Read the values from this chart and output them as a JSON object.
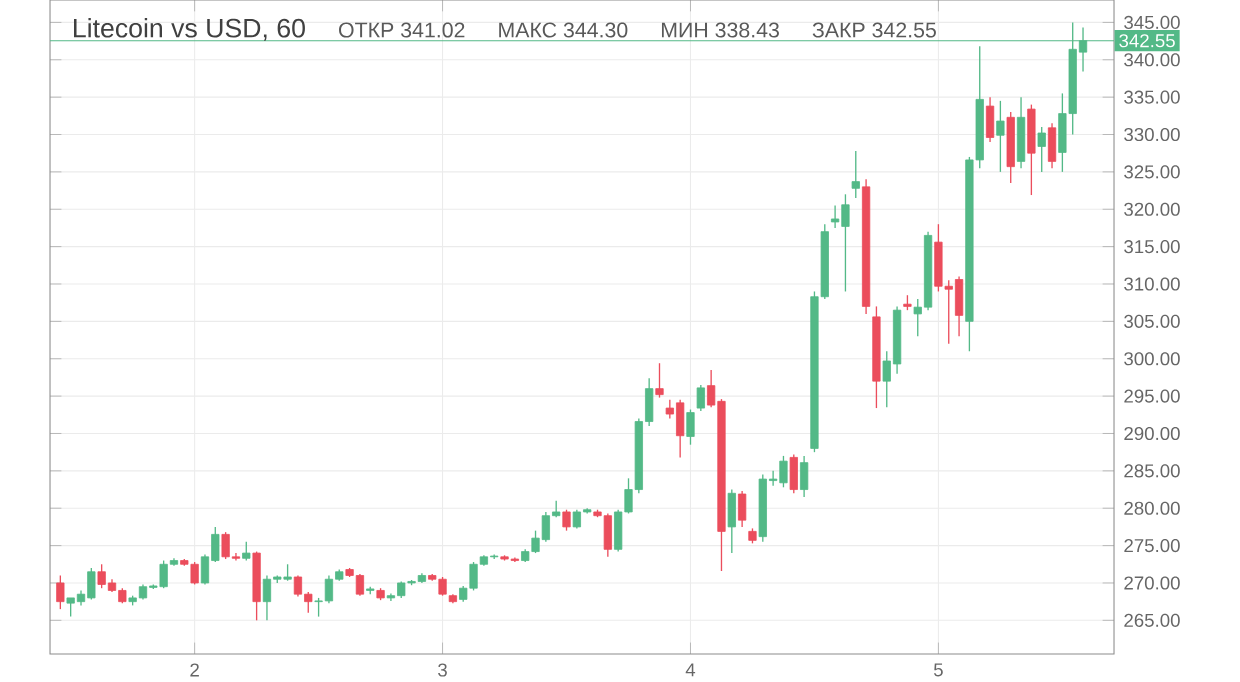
{
  "chart_data": {
    "type": "candlestick",
    "title": "Litecoin vs USD, 60",
    "annotations": [
      "ОТКР 341.02",
      "МАКС 344.30",
      "МИН 338.43",
      "ЗАКР 342.55"
    ],
    "x": [
      1.4583,
      1.5,
      1.5417,
      1.5833,
      1.625,
      1.6667,
      1.7083,
      1.75,
      1.7917,
      1.8333,
      1.875,
      1.9167,
      1.9583,
      2,
      2.0417,
      2.0833,
      2.125,
      2.1667,
      2.2083,
      2.25,
      2.2917,
      2.3333,
      2.375,
      2.4167,
      2.4583,
      2.5,
      2.5417,
      2.5833,
      2.625,
      2.6667,
      2.7083,
      2.75,
      2.7917,
      2.8333,
      2.875,
      2.9167,
      2.9583,
      3,
      3.0417,
      3.0833,
      3.125,
      3.1667,
      3.2083,
      3.25,
      3.2917,
      3.3333,
      3.375,
      3.4167,
      3.4583,
      3.5,
      3.5417,
      3.5833,
      3.625,
      3.6667,
      3.7083,
      3.75,
      3.7917,
      3.8333,
      3.875,
      3.9167,
      3.9583,
      4,
      4.0417,
      4.0833,
      4.125,
      4.1667,
      4.2083,
      4.25,
      4.2917,
      4.3333,
      4.375,
      4.4167,
      4.4583,
      4.5,
      4.5417,
      4.5833,
      4.625,
      4.6667,
      4.7083,
      4.75,
      4.7917,
      4.8333,
      4.875,
      4.9167,
      4.9583,
      5,
      5.0417,
      5.0833,
      5.125,
      5.1667,
      5.2083,
      5.25,
      5.2917,
      5.3333,
      5.375,
      5.4167,
      5.4583,
      5.5,
      5.5417,
      5.5833
    ],
    "ohlc": [
      [
        270,
        271,
        266.5,
        267.5
      ],
      [
        267.3,
        268,
        265.5,
        268
      ],
      [
        267.5,
        269,
        267,
        268.5
      ],
      [
        268,
        272,
        267.8,
        271.5
      ],
      [
        271.5,
        272.5,
        269.3,
        269.8
      ],
      [
        270,
        270.5,
        268.8,
        269
      ],
      [
        269,
        269.3,
        267.3,
        267.5
      ],
      [
        267.5,
        268.3,
        267,
        268
      ],
      [
        268,
        269.8,
        267.8,
        269.5
      ],
      [
        269.4,
        269.8,
        269.2,
        269.6
      ],
      [
        269.5,
        273,
        269.3,
        272.5
      ],
      [
        272.5,
        273.3,
        272.3,
        273
      ],
      [
        273,
        273.2,
        272.3,
        272.5
      ],
      [
        272.5,
        272.8,
        269.8,
        270
      ],
      [
        270,
        273.8,
        269.8,
        273.5
      ],
      [
        273,
        277.5,
        272.8,
        276.5
      ],
      [
        276.5,
        276.8,
        273.2,
        273.5
      ],
      [
        273.5,
        274,
        273,
        273.3
      ],
      [
        273.3,
        275.5,
        273,
        274
      ],
      [
        274,
        274.2,
        265,
        267.5
      ],
      [
        267.5,
        271,
        265,
        270.5
      ],
      [
        270.5,
        271,
        270,
        270.8
      ],
      [
        270.5,
        272.5,
        270.3,
        270.8
      ],
      [
        270.8,
        271,
        268.2,
        268.5
      ],
      [
        268.5,
        268.8,
        266,
        267.5
      ],
      [
        267.5,
        268,
        265.5,
        267.6
      ],
      [
        267.6,
        271,
        267.3,
        270.5
      ],
      [
        270.5,
        271.8,
        270.3,
        271.5
      ],
      [
        271.8,
        272,
        270.8,
        271
      ],
      [
        271,
        271.2,
        268.3,
        268.5
      ],
      [
        269,
        269.5,
        268.5,
        269.2
      ],
      [
        269,
        269.3,
        267.7,
        268
      ],
      [
        268,
        268.6,
        267.6,
        268.3
      ],
      [
        268.3,
        270.2,
        268,
        270
      ],
      [
        270,
        270.4,
        269.7,
        270.2
      ],
      [
        270.2,
        271.3,
        270,
        271
      ],
      [
        271,
        271.2,
        270.3,
        270.5
      ],
      [
        270.5,
        270.8,
        268.3,
        268.5
      ],
      [
        268.3,
        268.5,
        267.3,
        267.5
      ],
      [
        267.8,
        269.6,
        267.5,
        269.3
      ],
      [
        269.3,
        272.8,
        269,
        272.5
      ],
      [
        272.5,
        273.7,
        272.3,
        273.5
      ],
      [
        273.5,
        273.8,
        273.2,
        273.6
      ],
      [
        273.5,
        273.7,
        273,
        273.2
      ],
      [
        273.2,
        273.4,
        272.8,
        273
      ],
      [
        273,
        274.5,
        272.8,
        274.2
      ],
      [
        274.2,
        277,
        274,
        276
      ],
      [
        275.8,
        279.5,
        275.5,
        279
      ],
      [
        279,
        281,
        278.8,
        279.5
      ],
      [
        279.5,
        279.8,
        277,
        277.5
      ],
      [
        277.5,
        279.8,
        277.3,
        279.5
      ],
      [
        279.5,
        280,
        279.3,
        279.8
      ],
      [
        279.5,
        279.8,
        278.8,
        279
      ],
      [
        279,
        279.3,
        273.5,
        274.5
      ],
      [
        274.5,
        279.8,
        274.2,
        279.5
      ],
      [
        279.5,
        284,
        279.3,
        282.5
      ],
      [
        282.5,
        292,
        282,
        291.6
      ],
      [
        291.6,
        297.4,
        291,
        296
      ],
      [
        296,
        299.4,
        294.8,
        295.2
      ],
      [
        293.4,
        294.5,
        292,
        292.6
      ],
      [
        294.1,
        294.5,
        286.8,
        289.7
      ],
      [
        289.6,
        293.2,
        288.5,
        292.8
      ],
      [
        293.4,
        296.5,
        293,
        296.1
      ],
      [
        296.4,
        298.5,
        293.5,
        293.8
      ],
      [
        294.3,
        294.6,
        271.6,
        276.9
      ],
      [
        277.5,
        282.5,
        274,
        282
      ],
      [
        281.9,
        282.3,
        277.5,
        278.4
      ],
      [
        276.9,
        277.3,
        275.3,
        275.7
      ],
      [
        276.2,
        284.5,
        275.5,
        283.9
      ],
      [
        283.7,
        285,
        283,
        283.9
      ],
      [
        283.4,
        287,
        282.8,
        286.3
      ],
      [
        286.8,
        287.2,
        282,
        282.5
      ],
      [
        282.5,
        287,
        281.5,
        286.1
      ],
      [
        288,
        309,
        287.5,
        308.3
      ],
      [
        308.3,
        318,
        308,
        317
      ],
      [
        318.3,
        320.5,
        317.5,
        318.7
      ],
      [
        317.7,
        322,
        309,
        320.6
      ],
      [
        322.8,
        327.8,
        321.5,
        323.7
      ],
      [
        323,
        324,
        306,
        307
      ],
      [
        305.6,
        307,
        293.4,
        297
      ],
      [
        297,
        301,
        293.5,
        299.7
      ],
      [
        299.3,
        307,
        298,
        306.5
      ],
      [
        307.3,
        308.5,
        306.5,
        307
      ],
      [
        306,
        308,
        303,
        306.9
      ],
      [
        306.9,
        317,
        306.5,
        316.5
      ],
      [
        315.6,
        318,
        309,
        309.7
      ],
      [
        309.7,
        310.5,
        302,
        309.3
      ],
      [
        310.6,
        311,
        303,
        305.8
      ],
      [
        305,
        327,
        301,
        326.6
      ],
      [
        326.6,
        341.8,
        325.5,
        334.7
      ],
      [
        333.8,
        335,
        329,
        329.6
      ],
      [
        329.9,
        334.5,
        325,
        331.8
      ],
      [
        332.3,
        333,
        323.5,
        325.7
      ],
      [
        326.4,
        335,
        325.5,
        332.3
      ],
      [
        333.4,
        334,
        321.9,
        327.5
      ],
      [
        328.4,
        331,
        325,
        330.2
      ],
      [
        330.9,
        331.5,
        325.5,
        326.4
      ],
      [
        327.6,
        335.5,
        325,
        332.8
      ],
      [
        332.8,
        345,
        330,
        341.4
      ],
      [
        341.02,
        344.3,
        338.43,
        342.55
      ]
    ],
    "colors": [
      "#eb4d5c",
      "#53b987",
      "#53b987",
      "#53b987",
      "#eb4d5c",
      "#eb4d5c",
      "#eb4d5c",
      "#53b987",
      "#53b987",
      "#53b987",
      "#53b987",
      "#53b987",
      "#eb4d5c",
      "#eb4d5c",
      "#53b987",
      "#53b987",
      "#eb4d5c",
      "#eb4d5c",
      "#53b987",
      "#eb4d5c",
      "#53b987",
      "#53b987",
      "#53b987",
      "#eb4d5c",
      "#eb4d5c",
      "#53b987",
      "#53b987",
      "#53b987",
      "#eb4d5c",
      "#eb4d5c",
      "#53b987",
      "#eb4d5c",
      "#53b987",
      "#53b987",
      "#53b987",
      "#53b987",
      "#eb4d5c",
      "#eb4d5c",
      "#eb4d5c",
      "#53b987",
      "#53b987",
      "#53b987",
      "#53b987",
      "#eb4d5c",
      "#eb4d5c",
      "#53b987",
      "#53b987",
      "#53b987",
      "#53b987",
      "#eb4d5c",
      "#53b987",
      "#53b987",
      "#eb4d5c",
      "#eb4d5c",
      "#53b987",
      "#53b987",
      "#53b987",
      "#53b987",
      "#eb4d5c",
      "#eb4d5c",
      "#eb4d5c",
      "#53b987",
      "#53b987",
      "#eb4d5c",
      "#eb4d5c",
      "#53b987",
      "#eb4d5c",
      "#eb4d5c",
      "#53b987",
      "#53b987",
      "#53b987",
      "#eb4d5c",
      "#53b987",
      "#53b987",
      "#53b987",
      "#53b987",
      "#53b987",
      "#53b987",
      "#eb4d5c",
      "#eb4d5c",
      "#53b987",
      "#53b987",
      "#eb4d5c",
      "#53b987",
      "#53b987",
      "#eb4d5c",
      "#eb4d5c",
      "#eb4d5c",
      "#53b987",
      "#53b987",
      "#eb4d5c",
      "#53b987",
      "#eb4d5c",
      "#53b987",
      "#eb4d5c",
      "#53b987",
      "#eb4d5c",
      "#53b987",
      "#53b987",
      "#53b987"
    ],
    "xlim": [
      1.4167,
      5.7083
    ],
    "xticks": [
      2,
      3,
      4,
      5
    ],
    "ylim": [
      260.5,
      348
    ],
    "yticks": [
      {
        "value": 265,
        "label": "265.00"
      },
      {
        "value": 270,
        "label": "270.00"
      },
      {
        "value": 275,
        "label": "275.00"
      },
      {
        "value": 280,
        "label": "280.00"
      },
      {
        "value": 285,
        "label": "285.00"
      },
      {
        "value": 290,
        "label": "290.00"
      },
      {
        "value": 295,
        "label": "295.00"
      },
      {
        "value": 300,
        "label": "300.00"
      },
      {
        "value": 305,
        "label": "305.00"
      },
      {
        "value": 310,
        "label": "310.00"
      },
      {
        "value": 315,
        "label": "315.00"
      },
      {
        "value": 320,
        "label": "320.00"
      },
      {
        "value": 325,
        "label": "325.00"
      },
      {
        "value": 330,
        "label": "330.00"
      },
      {
        "value": 335,
        "label": "335.00"
      },
      {
        "value": 340,
        "label": "340.00"
      },
      {
        "value": 345,
        "label": "345.00"
      }
    ],
    "ref_lines": [
      {
        "axis": "y",
        "value": 342.55,
        "label": "342.55",
        "color": "#53b987"
      }
    ],
    "grid": true
  }
}
